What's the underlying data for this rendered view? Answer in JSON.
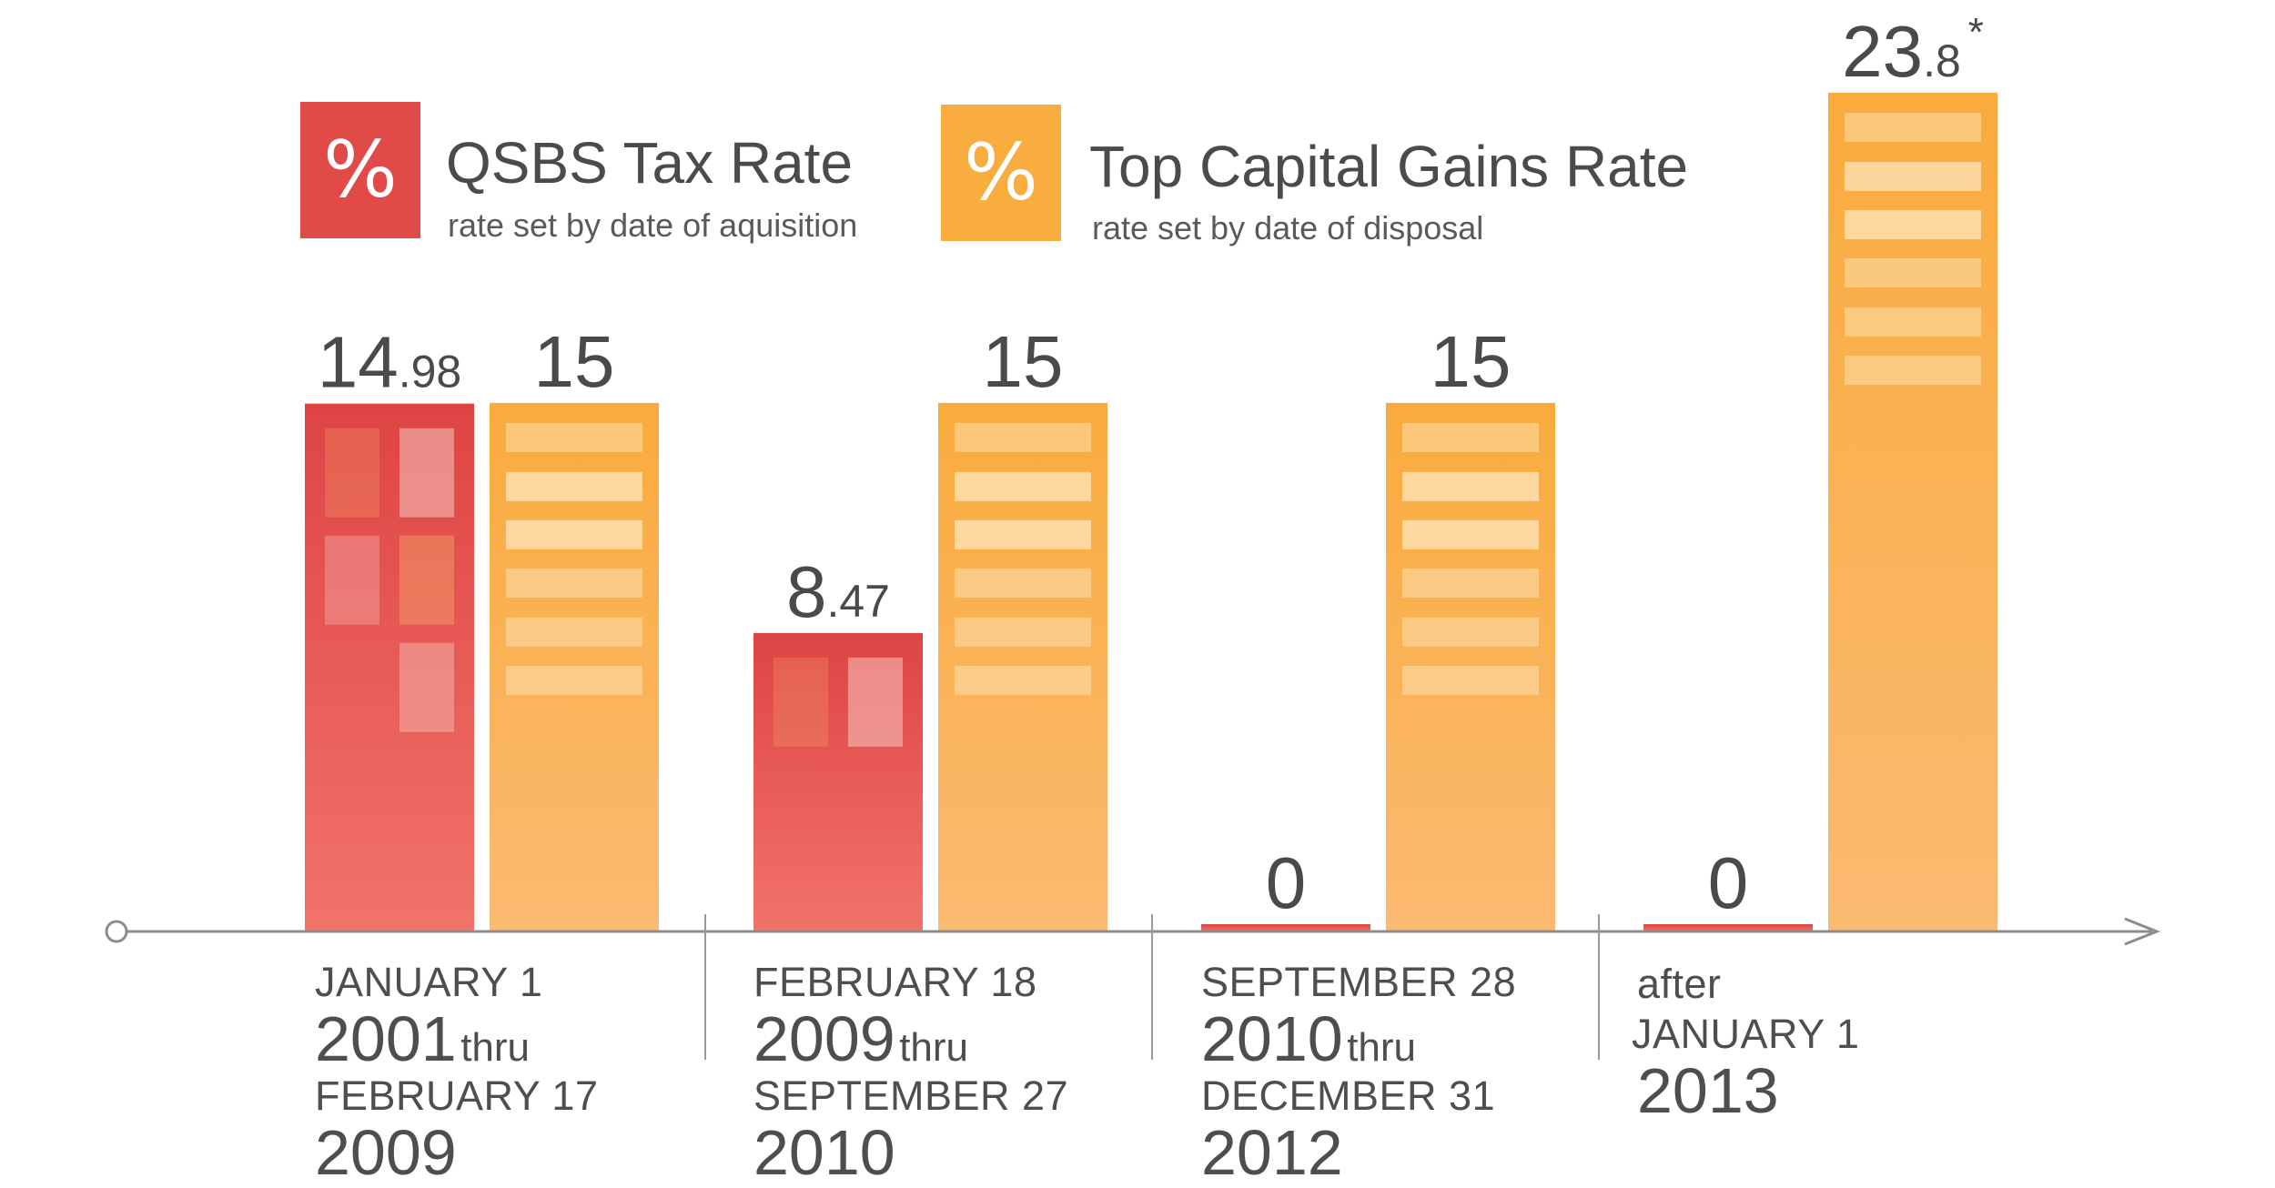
{
  "legend": [
    {
      "symbol": "%",
      "title": "QSBS Tax Rate",
      "subtitle": "rate set by date of aquisition",
      "color": "#e04a47"
    },
    {
      "symbol": "%",
      "title": "Top Capital Gains Rate",
      "subtitle": "rate set by date of disposal",
      "color": "#f9ad3f"
    }
  ],
  "periods": [
    {
      "line1": "JANUARY 1",
      "year1": "2001",
      "thru": "thru",
      "line3": "FEBRUARY 17",
      "year2": "2009"
    },
    {
      "line1": "FEBRUARY 18",
      "year1": "2009",
      "thru": "thru",
      "line3": "SEPTEMBER 27",
      "year2": "2010"
    },
    {
      "line1": "SEPTEMBER 28",
      "year1": "2010",
      "thru": "thru",
      "line3": "DECEMBER 31",
      "year2": "2012"
    },
    {
      "line0": "after",
      "line1": "JANUARY 1",
      "year1": "2013"
    }
  ],
  "chart_data": {
    "type": "bar",
    "categories": [
      "JANUARY 1 2001 thru FEBRUARY 17 2009",
      "FEBRUARY 18 2009 thru SEPTEMBER 27 2010",
      "SEPTEMBER 28 2010 thru DECEMBER 31 2012",
      "after JANUARY 1 2013"
    ],
    "series": [
      {
        "name": "QSBS Tax Rate",
        "values": [
          14.98,
          8.47,
          0,
          0
        ],
        "color": "#e04a47"
      },
      {
        "name": "Top Capital Gains Rate",
        "values": [
          15,
          15,
          15,
          23.8
        ],
        "color": "#f9ad3f"
      }
    ],
    "value_labels": {
      "QSBS Tax Rate": [
        {
          "int": "14",
          "dec": ".98"
        },
        {
          "int": "8",
          "dec": ".47"
        },
        {
          "int": "0",
          "dec": ""
        },
        {
          "int": "0",
          "dec": ""
        }
      ],
      "Top Capital Gains Rate": [
        {
          "int": "15",
          "dec": ""
        },
        {
          "int": "15",
          "dec": ""
        },
        {
          "int": "15",
          "dec": ""
        },
        {
          "int": "23",
          "dec": ".8",
          "mark": "*"
        }
      ]
    },
    "ylim": [
      0,
      23.8
    ],
    "grid": false,
    "legend_position": "top-left"
  }
}
